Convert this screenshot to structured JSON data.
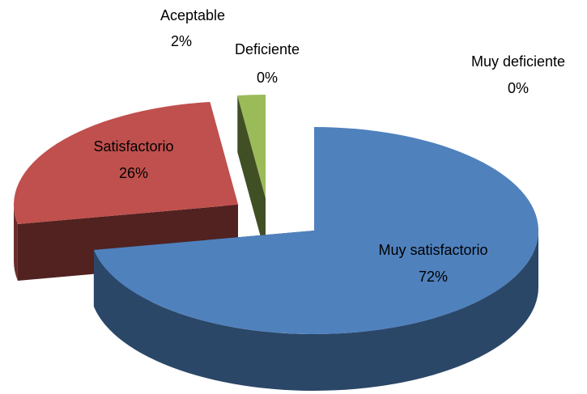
{
  "chart_data": {
    "type": "pie3d",
    "categories": [
      "Muy satisfactorio",
      "Satisfactorio",
      "Aceptable",
      "Deficiente",
      "Muy deficiente"
    ],
    "values": [
      72,
      26,
      2,
      0,
      0
    ],
    "value_labels": [
      "72%",
      "26%",
      "2%",
      "0%",
      "0%"
    ],
    "colors": [
      "#4f81bd",
      "#c0504d",
      "#9bbb59",
      "#8064a2",
      "#4bacc6"
    ]
  }
}
